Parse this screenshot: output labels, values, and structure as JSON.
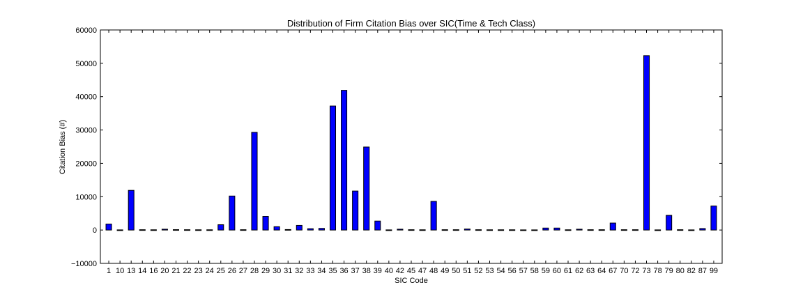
{
  "chart_data": {
    "type": "bar",
    "title": "Distribution of Firm Citation Bias over SIC(Time & Tech Class)",
    "xlabel": "SIC Code",
    "ylabel": "Citation Bias (#)",
    "ylim": [
      -10000,
      60000
    ],
    "yticks": [
      -10000,
      0,
      10000,
      20000,
      30000,
      40000,
      50000,
      60000
    ],
    "ytick_labels": [
      "−10000",
      "0",
      "10000",
      "20000",
      "30000",
      "40000",
      "50000",
      "60000"
    ],
    "grid": false,
    "bar_color": "#0000ff",
    "categories": [
      "1",
      "10",
      "13",
      "14",
      "16",
      "20",
      "21",
      "22",
      "23",
      "24",
      "25",
      "26",
      "27",
      "28",
      "29",
      "30",
      "31",
      "32",
      "33",
      "34",
      "35",
      "36",
      "37",
      "38",
      "39",
      "40",
      "42",
      "45",
      "47",
      "48",
      "49",
      "50",
      "51",
      "52",
      "53",
      "54",
      "56",
      "57",
      "58",
      "59",
      "60",
      "61",
      "62",
      "63",
      "64",
      "67",
      "70",
      "72",
      "73",
      "78",
      "79",
      "80",
      "82",
      "87",
      "99"
    ],
    "values": [
      1800,
      50,
      11900,
      100,
      80,
      250,
      120,
      100,
      80,
      80,
      1600,
      10200,
      100,
      29300,
      4100,
      1000,
      150,
      1400,
      400,
      500,
      37200,
      41900,
      11700,
      24900,
      2700,
      50,
      250,
      100,
      80,
      8600,
      100,
      100,
      300,
      100,
      80,
      80,
      80,
      50,
      50,
      600,
      600,
      80,
      250,
      100,
      100,
      2100,
      100,
      100,
      52300,
      50,
      4400,
      100,
      50,
      450,
      7200
    ]
  }
}
